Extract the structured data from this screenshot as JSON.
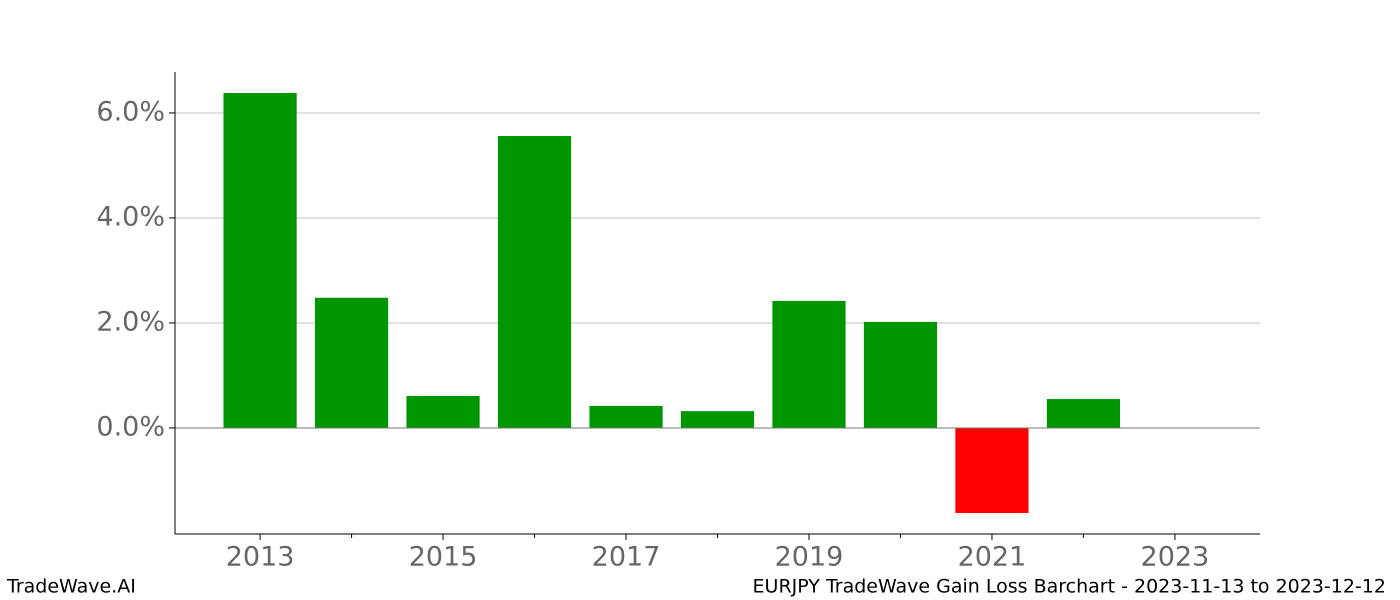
{
  "chart_data": {
    "type": "bar",
    "x": [
      2013,
      2014,
      2015,
      2016,
      2017,
      2018,
      2019,
      2020,
      2021,
      2022
    ],
    "values": [
      6.38,
      2.48,
      0.61,
      5.56,
      0.42,
      0.32,
      2.42,
      2.02,
      -1.62,
      0.55
    ],
    "colors": [
      "#009600",
      "#009600",
      "#009600",
      "#009600",
      "#009600",
      "#009600",
      "#009600",
      "#009600",
      "#ff0000",
      "#009600"
    ],
    "xlim": [
      2012.07,
      2023.93
    ],
    "xticks": [
      2013,
      2015,
      2017,
      2019,
      2021,
      2023
    ],
    "xminorticks": [
      2014,
      2016,
      2018,
      2020,
      2022
    ],
    "ylim": [
      -2.02,
      6.78
    ],
    "yticks": [
      {
        "value": 0,
        "label": "0.0%"
      },
      {
        "value": 2,
        "label": "2.0%"
      },
      {
        "value": 4,
        "label": "4.0%"
      },
      {
        "value": 6,
        "label": "6.0%"
      }
    ],
    "grid": true,
    "footer_left": "TradeWave.AI",
    "footer_right": "EURJPY TradeWave Gain Loss Barchart - 2023-11-13 to 2023-12-12"
  }
}
